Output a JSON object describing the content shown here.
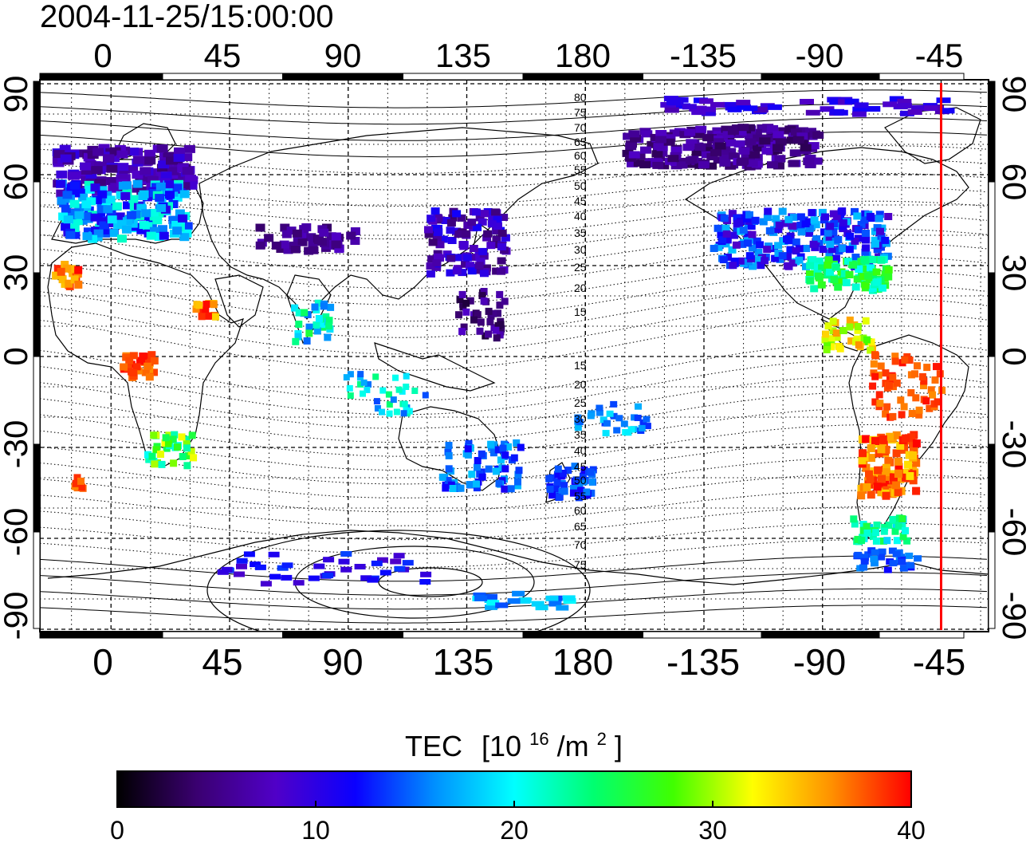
{
  "map": {
    "timestamp": "2004-11-25/15:00:00",
    "lon_ticks_top": [
      "0",
      "45",
      "90",
      "135",
      "180",
      "-135",
      "-90",
      "-45"
    ],
    "lon_ticks_bottom": [
      "0",
      "45",
      "90",
      "135",
      "180",
      "-135",
      "-90",
      "-45"
    ],
    "lat_ticks_left": [
      "90",
      "60",
      "30",
      "0",
      "-30",
      "-60",
      "-90"
    ],
    "lat_ticks_right": [
      "90",
      "60",
      "30",
      "0",
      "-30",
      "-60",
      "-90"
    ],
    "contour_labels_north": [
      "80",
      "75",
      "70",
      "65",
      "60",
      "55",
      "50",
      "45",
      "40",
      "35",
      "30",
      "25",
      "20",
      "15"
    ],
    "contour_labels_south": [
      "15",
      "20",
      "25",
      "30",
      "35",
      "40",
      "45",
      "50",
      "55",
      "60",
      "65",
      "70",
      "75"
    ],
    "terminator_color": "#ff0000",
    "terminator_longitude": -45
  },
  "colorbar": {
    "title": "TEC",
    "unit_base": "[10",
    "unit_exp": "16",
    "unit_mid": "/m",
    "unit_exp2": "2",
    "unit_end": "]",
    "min": 0,
    "max": 40,
    "tick_labels": [
      "0",
      "10",
      "20",
      "30",
      "40"
    ],
    "colors": [
      "#000000",
      "#3a0070",
      "#5000c8",
      "#0a00ff",
      "#0090ff",
      "#00ffff",
      "#00ff70",
      "#40ff00",
      "#ffff00",
      "#ff9000",
      "#ff0000"
    ]
  }
}
